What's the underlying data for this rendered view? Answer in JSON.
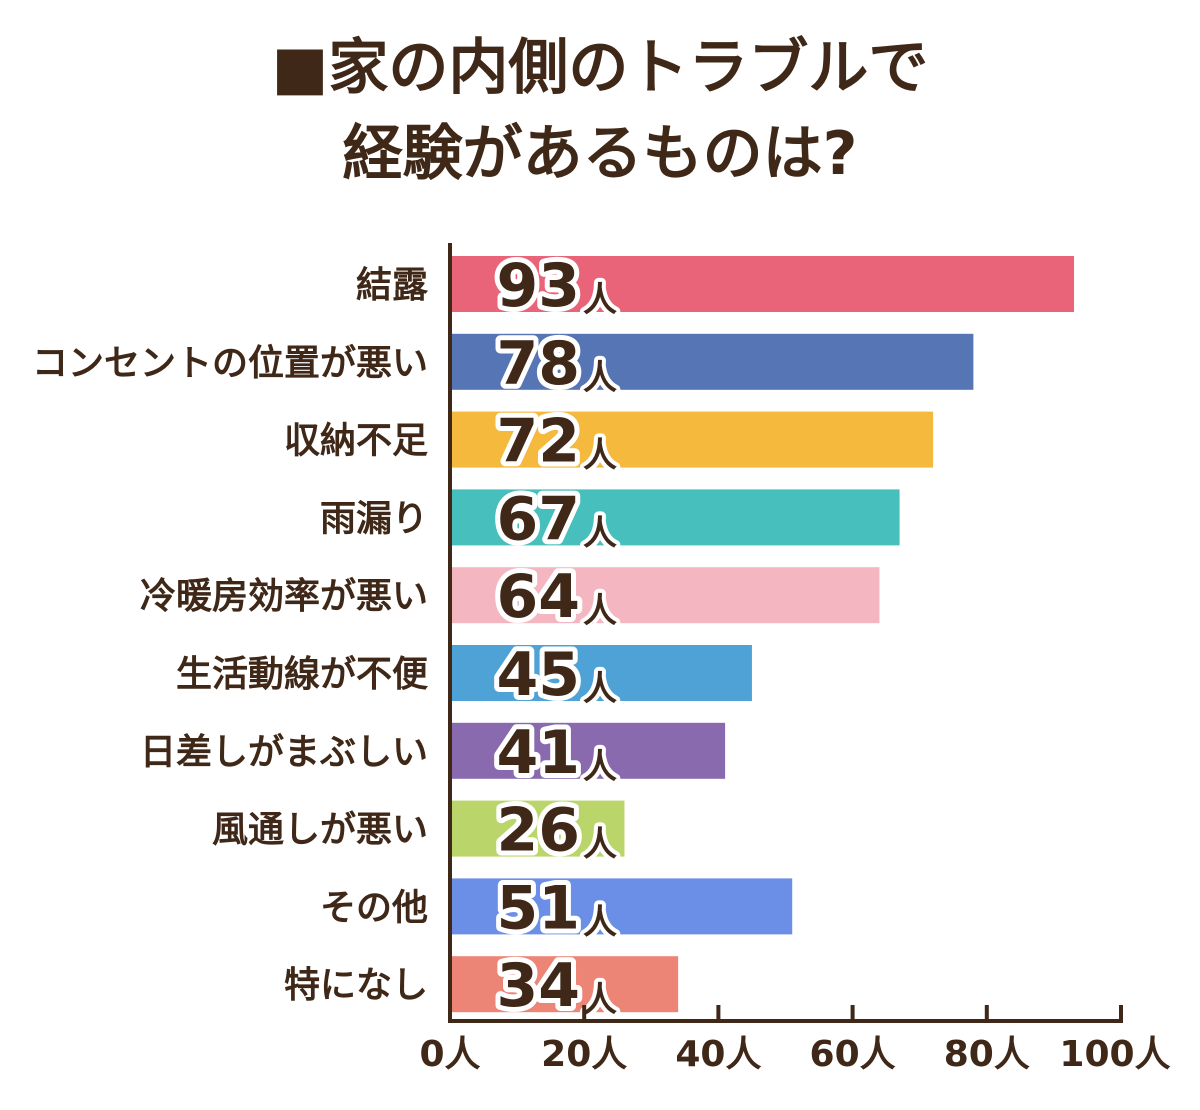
{
  "chart_data": {
    "type": "bar",
    "orientation": "horizontal",
    "title_lines": [
      "■家の内側のトラブルで",
      "経験があるものは?"
    ],
    "categories": [
      "結露",
      "コンセントの位置が悪い",
      "収納不足",
      "雨漏り",
      "冷暖房効率が悪い",
      "生活動線が不便",
      "日差しがまぶしい",
      "風通しが悪い",
      "その他",
      "特になし"
    ],
    "values": [
      93,
      78,
      72,
      67,
      64,
      45,
      41,
      26,
      51,
      34
    ],
    "value_labels": [
      "93",
      "78",
      "72",
      "67",
      "64",
      "45",
      "41",
      "26",
      "51",
      "34"
    ],
    "unit": "人",
    "colors": [
      "#e96478",
      "#5575b5",
      "#f5b93e",
      "#46bfbd",
      "#f4b7c1",
      "#4ea2d6",
      "#8a6aae",
      "#bad66b",
      "#6b8fe6",
      "#ec8576"
    ],
    "xlim": [
      0,
      100
    ],
    "x_ticks": [
      0,
      20,
      40,
      60,
      80,
      100
    ],
    "tick_labels": [
      "0人",
      "20人",
      "40人",
      "60人",
      "80人",
      "100人"
    ],
    "grid": false,
    "legend": "none"
  }
}
